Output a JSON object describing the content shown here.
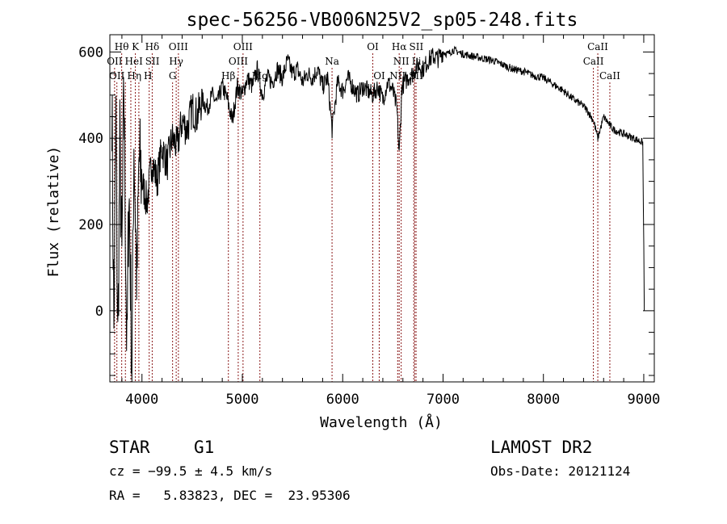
{
  "chart_data": {
    "type": "line",
    "title": "spec-56256-VB006N25V2_sp05-248.fits",
    "xlabel": "Wavelength (Å)",
    "ylabel": "Flux (relative)",
    "xlim": [
      3680,
      9105
    ],
    "ylim": [
      -165,
      640
    ],
    "xticks": [
      4000,
      5000,
      6000,
      7000,
      8000,
      9000
    ],
    "yticks": [
      0,
      200,
      400,
      600
    ],
    "grid": false,
    "series": [
      {
        "name": "flux",
        "x": [
          3700,
          3720,
          3740,
          3760,
          3780,
          3800,
          3820,
          3850,
          3870,
          3900,
          3920,
          3950,
          3970,
          4000,
          4050,
          4100,
          4150,
          4200,
          4250,
          4300,
          4350,
          4400,
          4450,
          4500,
          4550,
          4600,
          4650,
          4700,
          4750,
          4800,
          4850,
          4900,
          4950,
          5000,
          5050,
          5100,
          5150,
          5200,
          5250,
          5300,
          5350,
          5400,
          5450,
          5500,
          5550,
          5600,
          5650,
          5700,
          5750,
          5800,
          5850,
          5894,
          5950,
          6000,
          6050,
          6100,
          6150,
          6200,
          6250,
          6300,
          6350,
          6400,
          6450,
          6500,
          6540,
          6563,
          6590,
          6650,
          6700,
          6750,
          6800,
          6850,
          6900,
          6950,
          7000,
          7050,
          7100,
          7150,
          7200,
          7300,
          7400,
          7500,
          7600,
          7700,
          7800,
          7900,
          8000,
          8100,
          8200,
          8300,
          8400,
          8450,
          8500,
          8542,
          8600,
          8662,
          8700,
          8800,
          8900,
          8990,
          9000,
          9005
        ],
        "values": [
          500,
          -50,
          450,
          -80,
          380,
          100,
          520,
          -120,
          300,
          -140,
          400,
          50,
          350,
          300,
          250,
          350,
          300,
          380,
          340,
          400,
          380,
          440,
          420,
          470,
          450,
          490,
          470,
          500,
          480,
          520,
          490,
          440,
          520,
          500,
          540,
          520,
          560,
          500,
          540,
          530,
          560,
          540,
          580,
          550,
          560,
          530,
          550,
          540,
          560,
          520,
          540,
          420,
          530,
          510,
          540,
          520,
          500,
          520,
          510,
          500,
          520,
          490,
          530,
          510,
          470,
          360,
          520,
          540,
          550,
          570,
          560,
          580,
          590,
          585,
          600,
          595,
          605,
          600,
          595,
          590,
          585,
          580,
          570,
          560,
          555,
          545,
          540,
          525,
          510,
          490,
          475,
          460,
          440,
          400,
          450,
          430,
          420,
          410,
          400,
          390,
          150,
          0
        ]
      }
    ],
    "lines": [
      {
        "name": "OII",
        "wave": 3727,
        "row": 2
      },
      {
        "name": "Hθ",
        "wave": 3798,
        "row": 1
      },
      {
        "name": "OII",
        "wave": 3750,
        "row": 3
      },
      {
        "name": "Hη",
        "wave": 3835,
        "row": 3
      },
      {
        "name": "K",
        "wave": 3934,
        "row": 1
      },
      {
        "name": "HeI",
        "wave": 3889,
        "row": 2
      },
      {
        "name": "H",
        "wave": 3969,
        "row": 3
      },
      {
        "name": "SII",
        "wave": 4072,
        "row": 2
      },
      {
        "name": "Hδ",
        "wave": 4102,
        "row": 1
      },
      {
        "name": "G",
        "wave": 4305,
        "row": 3
      },
      {
        "name": "Hγ",
        "wave": 4341,
        "row": 2
      },
      {
        "name": "OIII",
        "wave": 4363,
        "row": 1
      },
      {
        "name": "Hβ",
        "wave": 4861,
        "row": 3
      },
      {
        "name": "OIII",
        "wave": 4959,
        "row": 2
      },
      {
        "name": "OIII",
        "wave": 5007,
        "row": 1
      },
      {
        "name": "Mg",
        "wave": 5175,
        "row": 3
      },
      {
        "name": "Na",
        "wave": 5894,
        "row": 2
      },
      {
        "name": "OI",
        "wave": 6300,
        "row": 1
      },
      {
        "name": "OI",
        "wave": 6364,
        "row": 3
      },
      {
        "name": "NII",
        "wave": 6548,
        "row": 3
      },
      {
        "name": "Hα",
        "wave": 6563,
        "row": 1
      },
      {
        "name": "NII",
        "wave": 6583,
        "row": 2
      },
      {
        "name": "Li",
        "wave": 6708,
        "row": 2
      },
      {
        "name": "SII",
        "wave": 6717,
        "row": 1
      },
      {
        "name": "SII",
        "wave": 6731,
        "row": 3
      },
      {
        "name": "CaII",
        "wave": 8498,
        "row": 2
      },
      {
        "name": "CaII",
        "wave": 8542,
        "row": 1
      },
      {
        "name": "CaII",
        "wave": 8662,
        "row": 3
      }
    ]
  },
  "info": {
    "class": "STAR",
    "subclass": "G1",
    "survey": "LAMOST DR2",
    "cz": "cz = −99.5 ± 4.5 km/s",
    "obs_date": "Obs-Date: 20121124",
    "radec": "RA =   5.83823, DEC =  23.95306"
  },
  "colors": {
    "line_marker": "#8b1a1a",
    "spectrum": "#000000"
  }
}
